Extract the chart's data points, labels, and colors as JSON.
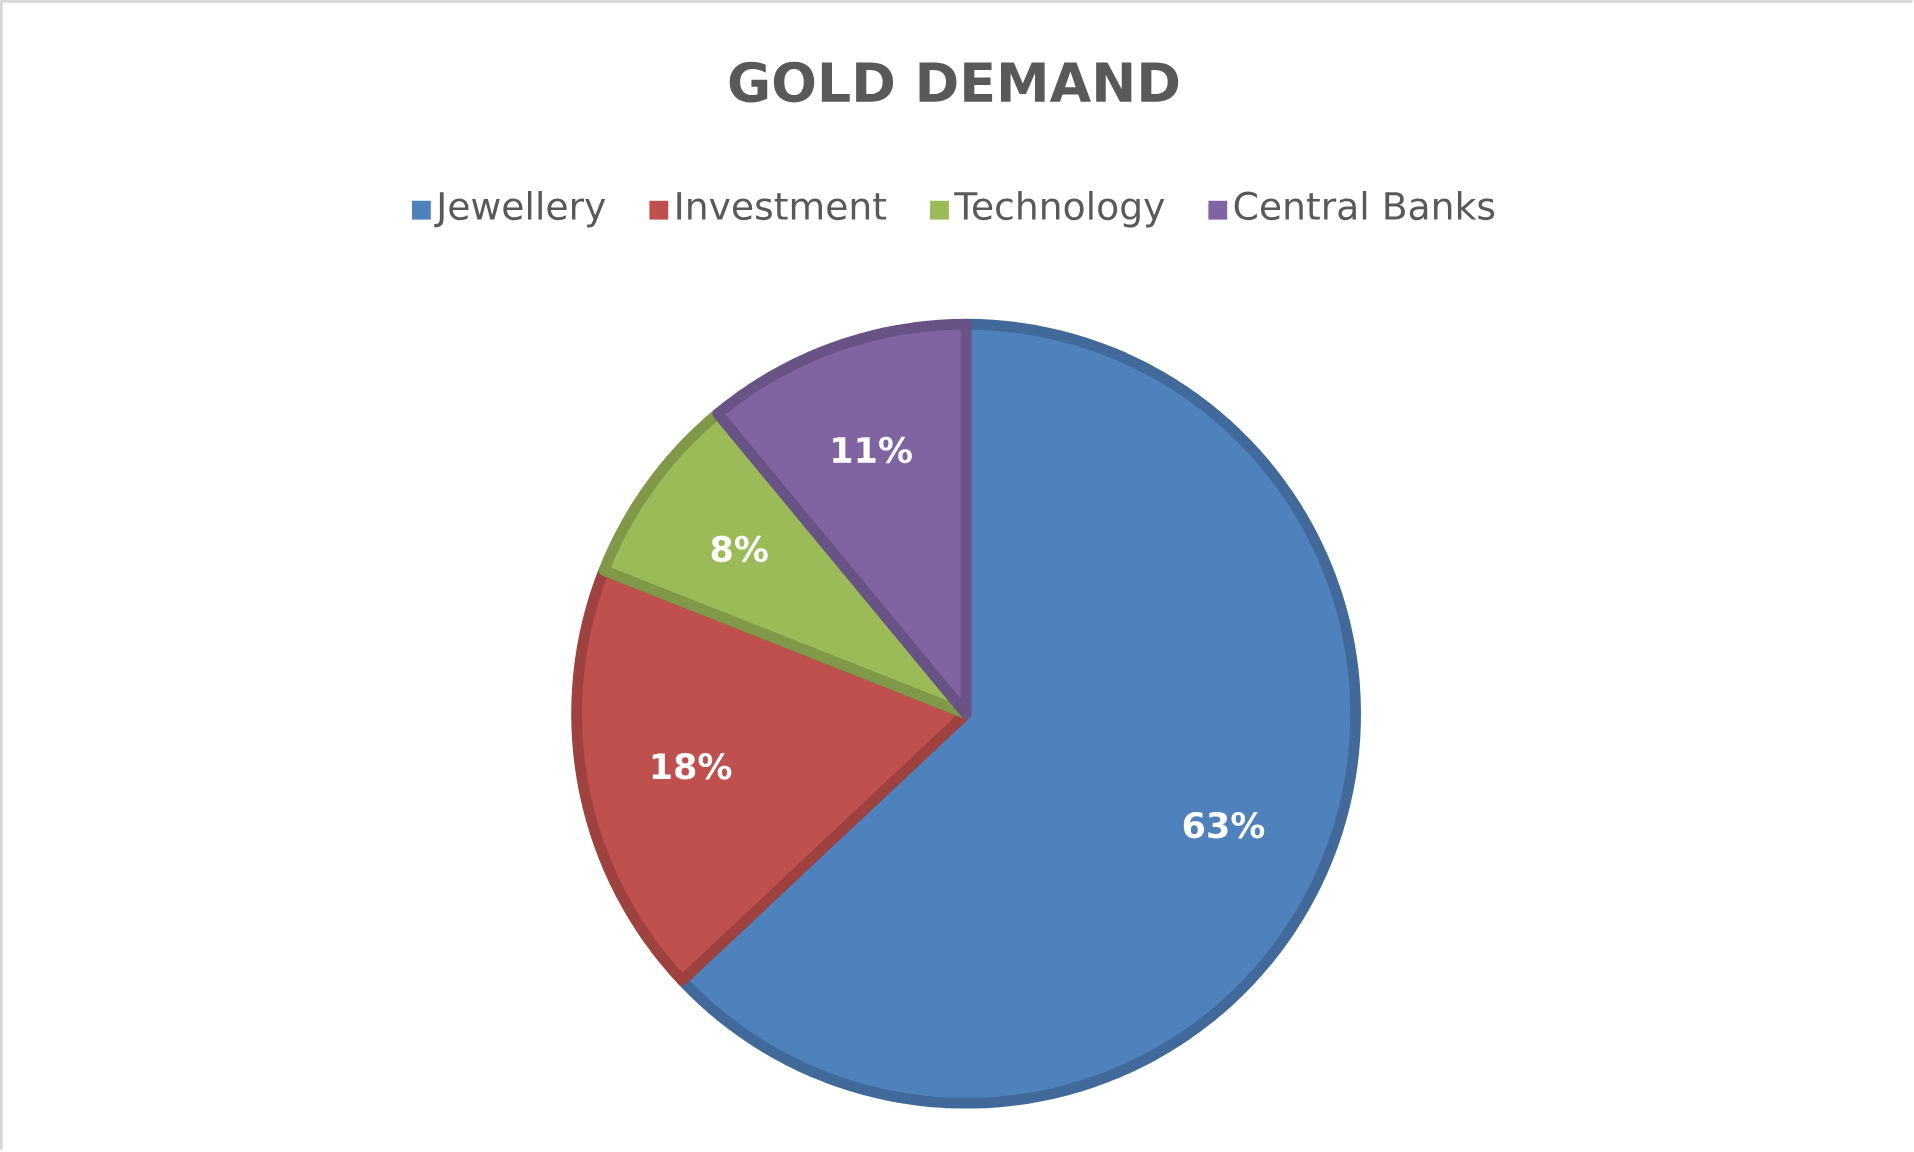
{
  "chart_data": {
    "type": "pie",
    "title": "GOLD DEMAND",
    "categories": [
      "Jewellery",
      "Investment",
      "Technology",
      "Central Banks"
    ],
    "values": [
      63,
      18,
      8,
      11
    ],
    "colors": [
      "#4f81bd",
      "#c0504d",
      "#9bbb59",
      "#8064a2"
    ],
    "value_labels": [
      "63%",
      "18%",
      "8%",
      "11%"
    ],
    "legend": "top"
  }
}
